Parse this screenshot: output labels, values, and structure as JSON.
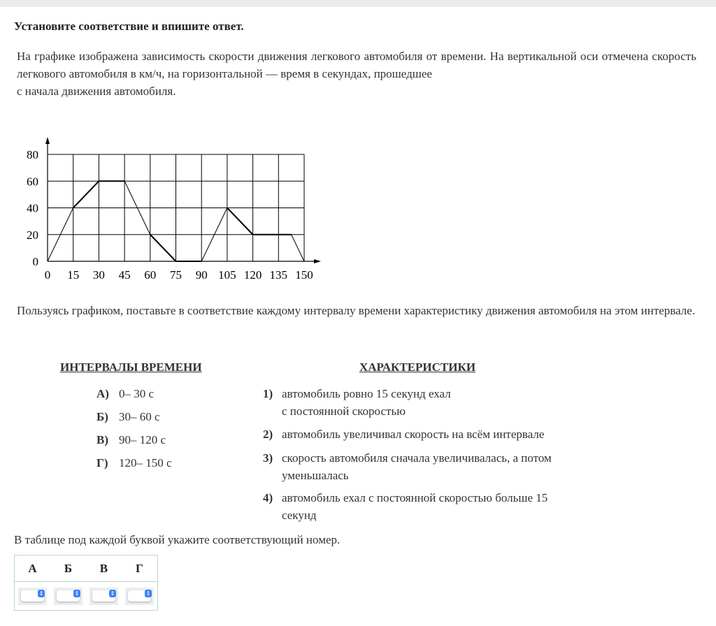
{
  "title": "Установите соответствие и впишите ответ.",
  "intro": "На графике изображена зависимость скорости движения легкового автомобиля от времени. На вертикальной оси отмечена скорость легкового автомобиля в км/ч, на горизонтальной —  время в секундах, прошедшее",
  "intro2": "с начала движения автомобиля.",
  "chart_data": {
    "type": "line",
    "x": [
      0,
      15,
      30,
      45,
      60,
      75,
      90,
      105,
      120,
      142.5,
      150
    ],
    "y": [
      0,
      40,
      60,
      60,
      20,
      0,
      0,
      40,
      20,
      20,
      0
    ],
    "xticks": [
      "0",
      "15",
      "30",
      "45",
      "60",
      "75",
      "90",
      "105",
      "120",
      "135",
      "150"
    ],
    "yticks": [
      "0",
      "20",
      "40",
      "60",
      "80"
    ],
    "xlim": [
      0,
      150
    ],
    "ylim": [
      0,
      80
    ],
    "grid": true,
    "xlabel": "",
    "ylabel": "",
    "title": ""
  },
  "question": "Пользуясь графиком, поставьте в соответствие каждому интервалу времени характеристику движения автомобиля на этом интервале.",
  "left_header": "ИНТЕРВАЛЫ ВРЕМЕНИ",
  "right_header": "ХАРАКТЕРИСТИКИ",
  "intervals": [
    {
      "letter": "А)",
      "text": "0– 30 с"
    },
    {
      "letter": "Б)",
      "text": "30– 60 с"
    },
    {
      "letter": "В)",
      "text": "90– 120 с"
    },
    {
      "letter": "Г)",
      "text": "120– 150 с"
    }
  ],
  "characteristics": [
    {
      "num": "1)",
      "l1": "автомобиль ровно 15 секунд ехал",
      "l2": "с постоянной скоростью"
    },
    {
      "num": "2)",
      "l1": "автомобиль увеличивал скорость на всём интервале",
      "l2": ""
    },
    {
      "num": "3)",
      "l1": "скорость автомобиля сначала увеличивалась, а потом",
      "l2": "уменьшалась"
    },
    {
      "num": "4)",
      "l1": "автомобиль ехал с постоянной скоростью больше 15",
      "l2": "секунд"
    }
  ],
  "instruction": "В таблице под каждой буквой укажите соответствующий номер.",
  "table": {
    "headers": [
      "А",
      "Б",
      "В",
      "Г"
    ]
  }
}
